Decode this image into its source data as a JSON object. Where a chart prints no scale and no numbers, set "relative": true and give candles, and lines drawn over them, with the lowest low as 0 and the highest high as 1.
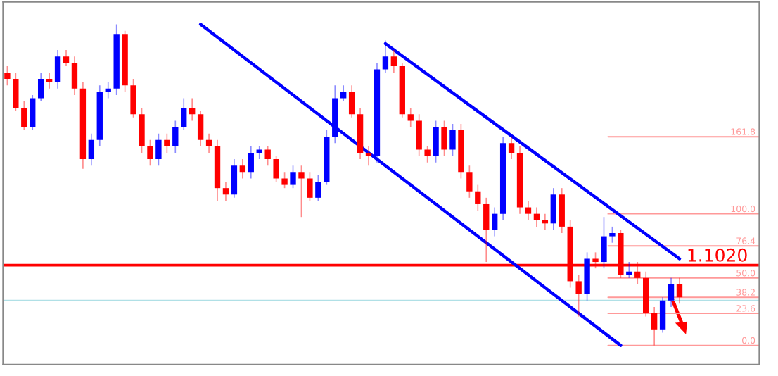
{
  "chart_data": {
    "type": "candlestick",
    "relative": true,
    "categories": [
      null,
      null,
      null,
      null,
      null,
      null,
      null,
      null,
      null,
      null,
      null,
      null,
      null,
      null,
      null,
      null,
      null,
      null,
      null,
      null,
      null,
      null,
      null,
      null,
      null,
      null,
      null,
      null,
      null,
      null,
      null,
      null,
      null,
      null,
      null,
      null,
      null,
      null,
      null,
      null,
      null,
      null,
      null,
      null,
      null,
      null,
      null,
      null,
      null,
      null,
      null,
      null,
      null,
      null,
      null,
      null,
      null,
      null,
      null,
      null,
      null,
      null,
      null,
      null,
      null,
      null,
      null,
      null,
      null,
      null,
      null,
      null,
      null,
      null,
      null,
      null,
      null,
      null,
      null,
      null,
      null
    ],
    "ohlc": [
      [
        0.85,
        0.87,
        0.81,
        0.83
      ],
      [
        0.83,
        0.85,
        0.73,
        0.74
      ],
      [
        0.74,
        0.76,
        0.67,
        0.68
      ],
      [
        0.68,
        0.78,
        0.67,
        0.77
      ],
      [
        0.77,
        0.85,
        0.76,
        0.83
      ],
      [
        0.83,
        0.85,
        0.8,
        0.82
      ],
      [
        0.82,
        0.92,
        0.8,
        0.9
      ],
      [
        0.9,
        0.92,
        0.87,
        0.88
      ],
      [
        0.88,
        0.9,
        0.78,
        0.8
      ],
      [
        0.8,
        0.82,
        0.55,
        0.58
      ],
      [
        0.58,
        0.66,
        0.56,
        0.64
      ],
      [
        0.64,
        0.81,
        0.62,
        0.79
      ],
      [
        0.79,
        0.82,
        0.77,
        0.8
      ],
      [
        0.8,
        1.0,
        0.78,
        0.97
      ],
      [
        0.97,
        0.98,
        0.79,
        0.81
      ],
      [
        0.81,
        0.83,
        0.71,
        0.72
      ],
      [
        0.72,
        0.74,
        0.6,
        0.62
      ],
      [
        0.62,
        0.64,
        0.56,
        0.58
      ],
      [
        0.58,
        0.66,
        0.56,
        0.64
      ],
      [
        0.64,
        0.66,
        0.6,
        0.62
      ],
      [
        0.62,
        0.7,
        0.6,
        0.68
      ],
      [
        0.68,
        0.77,
        0.67,
        0.74
      ],
      [
        0.74,
        0.77,
        0.7,
        0.72
      ],
      [
        0.72,
        0.73,
        0.62,
        0.64
      ],
      [
        0.64,
        0.66,
        0.6,
        0.62
      ],
      [
        0.62,
        0.64,
        0.45,
        0.49
      ],
      [
        0.49,
        0.51,
        0.45,
        0.47
      ],
      [
        0.47,
        0.58,
        0.46,
        0.56
      ],
      [
        0.56,
        0.58,
        0.52,
        0.54
      ],
      [
        0.54,
        0.62,
        0.52,
        0.6
      ],
      [
        0.6,
        0.62,
        0.58,
        0.61
      ],
      [
        0.61,
        0.62,
        0.56,
        0.58
      ],
      [
        0.58,
        0.59,
        0.51,
        0.52
      ],
      [
        0.52,
        0.54,
        0.49,
        0.5
      ],
      [
        0.5,
        0.56,
        0.49,
        0.54
      ],
      [
        0.54,
        0.56,
        0.4,
        0.52
      ],
      [
        0.52,
        0.54,
        0.45,
        0.46
      ],
      [
        0.46,
        0.53,
        0.45,
        0.51
      ],
      [
        0.51,
        0.67,
        0.5,
        0.65
      ],
      [
        0.65,
        0.81,
        0.63,
        0.77
      ],
      [
        0.77,
        0.81,
        0.76,
        0.79
      ],
      [
        0.79,
        0.81,
        0.71,
        0.72
      ],
      [
        0.72,
        0.74,
        0.58,
        0.6
      ],
      [
        0.6,
        0.62,
        0.56,
        0.59
      ],
      [
        0.59,
        0.88,
        0.57,
        0.86
      ],
      [
        0.86,
        0.95,
        0.85,
        0.9
      ],
      [
        0.9,
        0.92,
        0.85,
        0.87
      ],
      [
        0.87,
        0.88,
        0.71,
        0.72
      ],
      [
        0.72,
        0.74,
        0.68,
        0.7
      ],
      [
        0.7,
        0.72,
        0.59,
        0.61
      ],
      [
        0.61,
        0.62,
        0.57,
        0.59
      ],
      [
        0.59,
        0.7,
        0.57,
        0.68
      ],
      [
        0.68,
        0.7,
        0.59,
        0.61
      ],
      [
        0.61,
        0.69,
        0.59,
        0.67
      ],
      [
        0.67,
        0.69,
        0.52,
        0.54
      ],
      [
        0.54,
        0.56,
        0.46,
        0.48
      ],
      [
        0.48,
        0.5,
        0.42,
        0.44
      ],
      [
        0.44,
        0.46,
        0.26,
        0.36
      ],
      [
        0.36,
        0.43,
        0.34,
        0.41
      ],
      [
        0.41,
        0.65,
        0.39,
        0.63
      ],
      [
        0.63,
        0.65,
        0.58,
        0.6
      ],
      [
        0.6,
        0.62,
        0.41,
        0.43
      ],
      [
        0.43,
        0.45,
        0.39,
        0.41
      ],
      [
        0.41,
        0.43,
        0.37,
        0.39
      ],
      [
        0.39,
        0.41,
        0.36,
        0.38
      ],
      [
        0.38,
        0.49,
        0.36,
        0.47
      ],
      [
        0.47,
        0.49,
        0.35,
        0.37
      ],
      [
        0.37,
        0.39,
        0.18,
        0.2
      ],
      [
        0.2,
        0.22,
        0.09,
        0.16
      ],
      [
        0.16,
        0.29,
        0.14,
        0.27
      ],
      [
        0.27,
        0.29,
        0.24,
        0.26
      ],
      [
        0.26,
        0.4,
        0.24,
        0.34
      ],
      [
        0.34,
        0.37,
        0.32,
        0.35
      ],
      [
        0.35,
        0.36,
        0.21,
        0.22
      ],
      [
        0.22,
        0.26,
        0.21,
        0.23
      ],
      [
        0.23,
        0.26,
        0.19,
        0.21
      ],
      [
        0.21,
        0.23,
        0.09,
        0.1
      ],
      [
        0.1,
        0.12,
        0.0,
        0.05
      ],
      [
        0.05,
        0.15,
        0.04,
        0.14
      ],
      [
        0.14,
        0.21,
        0.12,
        0.19
      ],
      [
        0.19,
        0.21,
        0.13,
        0.15
      ]
    ],
    "colors": [
      "#ff0000",
      "#ff0000",
      "#ff0000",
      "#0000ff",
      "#0000ff",
      "#ff0000",
      "#0000ff",
      "#ff0000",
      "#ff0000",
      "#ff0000",
      "#0000ff",
      "#0000ff",
      "#0000ff",
      "#0000ff",
      "#ff0000",
      "#ff0000",
      "#ff0000",
      "#ff0000",
      "#0000ff",
      "#ff0000",
      "#0000ff",
      "#0000ff",
      "#ff0000",
      "#ff0000",
      "#ff0000",
      "#ff0000",
      "#ff0000",
      "#0000ff",
      "#ff0000",
      "#0000ff",
      "#0000ff",
      "#ff0000",
      "#ff0000",
      "#ff0000",
      "#0000ff",
      "#ff0000",
      "#ff0000",
      "#0000ff",
      "#0000ff",
      "#0000ff",
      "#0000ff",
      "#ff0000",
      "#ff0000",
      "#ff0000",
      "#0000ff",
      "#0000ff",
      "#ff0000",
      "#ff0000",
      "#ff0000",
      "#ff0000",
      "#ff0000",
      "#0000ff",
      "#ff0000",
      "#0000ff",
      "#ff0000",
      "#ff0000",
      "#ff0000",
      "#ff0000",
      "#0000ff",
      "#0000ff",
      "#ff0000",
      "#ff0000",
      "#ff0000",
      "#ff0000",
      "#ff0000",
      "#0000ff",
      "#ff0000",
      "#ff0000",
      "#ff0000",
      "#0000ff",
      "#ff0000",
      "#0000ff",
      "#0000ff",
      "#ff0000",
      "#0000ff",
      "#ff0000",
      "#ff0000",
      "#ff0000",
      "#0000ff",
      "#0000ff",
      "#ff0000"
    ],
    "series": [
      {
        "type": "line",
        "color": "#0000ff",
        "values": [
          null,
          null,
          null,
          null,
          null,
          null,
          null,
          null,
          null,
          null,
          null,
          null,
          null,
          null,
          null,
          null,
          null,
          null,
          null,
          null,
          null,
          null,
          null,
          1.0,
          null,
          null,
          null,
          null,
          null,
          null,
          null,
          null,
          null,
          null,
          null,
          null,
          null,
          null,
          null,
          null,
          null,
          null,
          null,
          null,
          null,
          null,
          null,
          null,
          null,
          null,
          null,
          null,
          null,
          null,
          null,
          null,
          null,
          null,
          null,
          null,
          null,
          null,
          null,
          null,
          null,
          null,
          null,
          null,
          null,
          null,
          null,
          null,
          null,
          0.0,
          null,
          null,
          null,
          null,
          null,
          null,
          null
        ]
      },
      {
        "type": "line",
        "color": "#0000ff",
        "values": [
          null,
          null,
          null,
          null,
          null,
          null,
          null,
          null,
          null,
          null,
          null,
          null,
          null,
          null,
          null,
          null,
          null,
          null,
          null,
          null,
          null,
          null,
          null,
          null,
          null,
          null,
          null,
          null,
          null,
          null,
          null,
          null,
          null,
          null,
          null,
          null,
          null,
          null,
          null,
          null,
          null,
          null,
          null,
          null,
          null,
          0.94,
          null,
          null,
          null,
          null,
          null,
          null,
          null,
          null,
          null,
          null,
          null,
          null,
          null,
          null,
          null,
          null,
          null,
          null,
          null,
          null,
          null,
          null,
          null,
          null,
          null,
          null,
          null,
          null,
          null,
          null,
          null,
          null,
          null,
          null,
          0.27
        ]
      }
    ],
    "ref_lines": [
      {
        "axis": "y",
        "value": 0.25,
        "color": "#ff0000",
        "line_style": "solid"
      },
      {
        "axis": "y",
        "value": 0.14,
        "color": "#b0e0e6",
        "line_style": "solid"
      },
      {
        "axis": "y",
        "value": 0.65,
        "color": "#ff9999",
        "line_style": "solid"
      },
      {
        "axis": "y",
        "value": 0.41,
        "color": "#ff9999",
        "line_style": "solid"
      },
      {
        "axis": "y",
        "value": 0.31,
        "color": "#ff9999",
        "line_style": "solid"
      },
      {
        "axis": "y",
        "value": 0.21,
        "color": "#ff9999",
        "line_style": "solid"
      },
      {
        "axis": "y",
        "value": 0.15,
        "color": "#ff9999",
        "line_style": "solid"
      },
      {
        "axis": "y",
        "value": 0.1,
        "color": "#ff9999",
        "line_style": "solid"
      },
      {
        "axis": "y",
        "value": 0.0,
        "color": "#ff9999",
        "line_style": "solid"
      }
    ],
    "annotations": [
      {
        "text": "1.1020",
        "y": 0.25
      },
      {
        "text": "161.8",
        "y": 0.65
      },
      {
        "text": "100.0",
        "y": 0.41
      },
      {
        "text": "76.4",
        "y": 0.31
      },
      {
        "text": "50.0",
        "y": 0.21
      },
      {
        "text": "38.2",
        "y": 0.15
      },
      {
        "text": "23.6",
        "y": 0.1
      },
      {
        "text": "0.0",
        "y": 0.0
      }
    ]
  }
}
